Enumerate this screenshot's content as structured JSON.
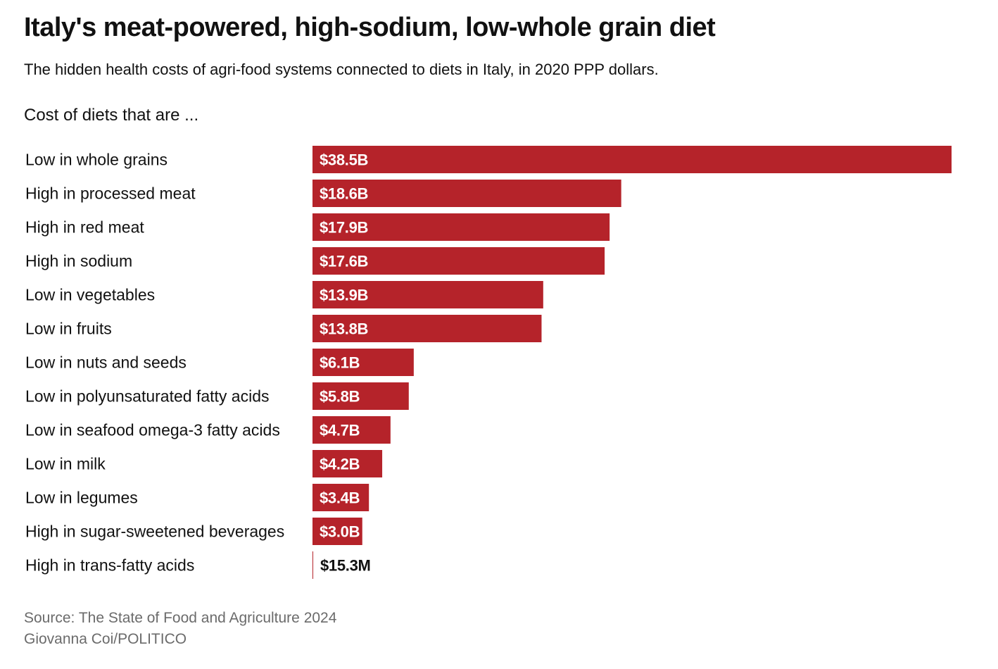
{
  "header": {
    "title": "Italy's meat-powered, high-sodium, low-whole grain diet",
    "subtitle": "The hidden health costs of agri-food systems connected to diets in Italy, in 2020 PPP dollars.",
    "section_label": "Cost of diets that are ..."
  },
  "footer": {
    "source": "Source: The State of Food and Agriculture 2024",
    "credit": "Giovanna Coi/POLITICO"
  },
  "colors": {
    "bar": "#b5232a",
    "label_inside": "#ffffff",
    "label_outside": "#111111"
  },
  "chart_data": {
    "type": "bar",
    "orientation": "horizontal",
    "title": "Italy's meat-powered, high-sodium, low-whole grain diet",
    "subtitle": "The hidden health costs of agri-food systems connected to diets in Italy, in 2020 PPP dollars.",
    "xlabel": "",
    "ylabel": "",
    "grid": false,
    "legend": "none",
    "categories": [
      "Low in whole grains",
      "High in processed meat",
      "High in red meat",
      "High in sodium",
      "Low in vegetables",
      "Low in fruits",
      "Low in nuts and seeds",
      "Low in polyunsaturated fatty acids",
      "Low in seafood omega-3 fatty acids",
      "Low in milk",
      "Low in legumes",
      "High in sugar-sweetened beverages",
      "High in trans-fatty acids"
    ],
    "values": [
      38.5,
      18.6,
      17.9,
      17.6,
      13.9,
      13.8,
      6.1,
      5.8,
      4.7,
      4.2,
      3.4,
      3.0,
      0.0153
    ],
    "value_labels": [
      "$38.5B",
      "$18.6B",
      "$17.9B",
      "$17.6B",
      "$13.9B",
      "$13.8B",
      "$6.1B",
      "$5.8B",
      "$4.7B",
      "$4.2B",
      "$3.4B",
      "$3.0B",
      "$15.3M"
    ],
    "units": "billion USD (2020 PPP)",
    "xlim": [
      0,
      38.5
    ]
  }
}
